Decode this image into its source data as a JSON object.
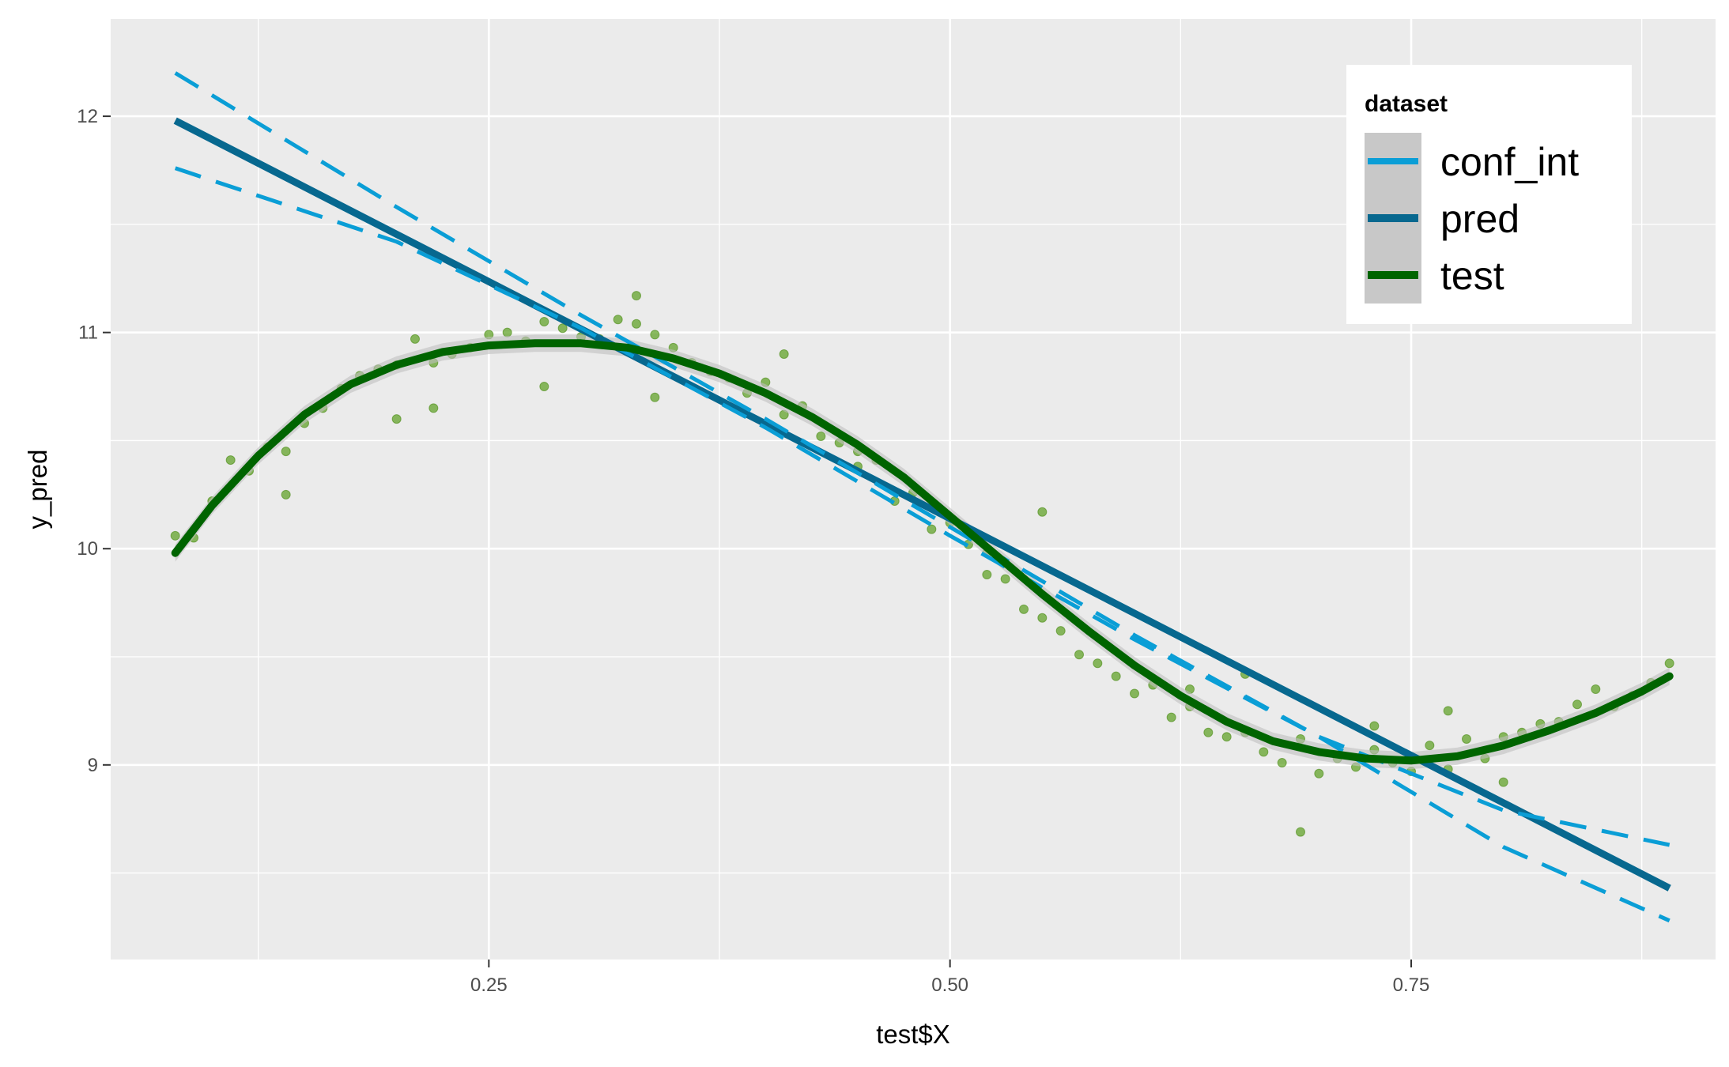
{
  "chart_data": {
    "type": "scatter",
    "xlabel": "test$X",
    "ylabel": "y_pred",
    "xlim": [
      0.045,
      0.915
    ],
    "ylim": [
      8.1,
      12.45
    ],
    "x_ticks": [
      0.25,
      0.5,
      0.75
    ],
    "x_tick_labels": [
      "0.25",
      "0.50",
      "0.75"
    ],
    "x_minor_ticks": [
      0.125,
      0.375,
      0.625,
      0.875
    ],
    "y_ticks": [
      9,
      10,
      11,
      12
    ],
    "y_tick_labels": [
      "9",
      "10",
      "11",
      "12"
    ],
    "y_minor_ticks": [
      8.5,
      9.5,
      10.5,
      11.5
    ],
    "grid": true,
    "legend": {
      "title": "dataset",
      "placement": "top-right",
      "entries": [
        {
          "label": "conf_int",
          "color": "#0a9ed6",
          "style": "dashed"
        },
        {
          "label": "pred",
          "color": "#07688f",
          "style": "solid"
        },
        {
          "label": "test",
          "color": "#006400",
          "style": "solid"
        }
      ]
    },
    "colors": {
      "panel": "#ebebeb",
      "grid": "#ffffff",
      "points": "#5a9e1e",
      "conf_int": "#0a9ed6",
      "pred": "#07688f",
      "test": "#006400",
      "ribbon": "#c0c0c0"
    },
    "series": [
      {
        "name": "pred",
        "kind": "line",
        "x": [
          0.08,
          0.89
        ],
        "y": [
          11.98,
          8.43
        ]
      },
      {
        "name": "conf_int",
        "kind": "dashed-line",
        "x": [
          0.08,
          0.2,
          0.3,
          0.4,
          0.5,
          0.6,
          0.7,
          0.8,
          0.89
        ],
        "y": [
          12.2,
          11.58,
          11.08,
          10.6,
          10.1,
          9.6,
          9.13,
          8.62,
          8.28
        ]
      },
      {
        "name": "conf_int",
        "kind": "dashed-line",
        "x": [
          0.08,
          0.2,
          0.3,
          0.4,
          0.5,
          0.6,
          0.7,
          0.8,
          0.89
        ],
        "y": [
          11.76,
          11.42,
          11.02,
          10.56,
          10.06,
          9.58,
          9.13,
          8.79,
          8.63
        ]
      },
      {
        "name": "test",
        "kind": "smooth",
        "x": [
          0.08,
          0.1,
          0.125,
          0.15,
          0.175,
          0.2,
          0.225,
          0.25,
          0.275,
          0.3,
          0.325,
          0.35,
          0.375,
          0.4,
          0.425,
          0.45,
          0.475,
          0.5,
          0.525,
          0.55,
          0.575,
          0.6,
          0.625,
          0.65,
          0.675,
          0.7,
          0.725,
          0.75,
          0.775,
          0.8,
          0.825,
          0.85,
          0.875,
          0.89
        ],
        "y": [
          9.98,
          10.2,
          10.43,
          10.62,
          10.76,
          10.85,
          10.91,
          10.94,
          10.95,
          10.95,
          10.93,
          10.88,
          10.81,
          10.72,
          10.61,
          10.48,
          10.33,
          10.15,
          9.97,
          9.79,
          9.62,
          9.46,
          9.32,
          9.2,
          9.11,
          9.06,
          9.03,
          9.02,
          9.04,
          9.09,
          9.16,
          9.24,
          9.34,
          9.41
        ]
      },
      {
        "name": "test",
        "kind": "points",
        "x": [
          0.08,
          0.09,
          0.1,
          0.11,
          0.12,
          0.13,
          0.14,
          0.15,
          0.16,
          0.17,
          0.18,
          0.19,
          0.2,
          0.21,
          0.22,
          0.23,
          0.24,
          0.25,
          0.26,
          0.27,
          0.28,
          0.29,
          0.3,
          0.31,
          0.32,
          0.33,
          0.34,
          0.35,
          0.36,
          0.37,
          0.38,
          0.39,
          0.4,
          0.41,
          0.42,
          0.43,
          0.44,
          0.45,
          0.46,
          0.47,
          0.48,
          0.49,
          0.5,
          0.51,
          0.52,
          0.53,
          0.54,
          0.55,
          0.56,
          0.57,
          0.58,
          0.59,
          0.6,
          0.61,
          0.62,
          0.63,
          0.64,
          0.65,
          0.66,
          0.67,
          0.68,
          0.69,
          0.7,
          0.71,
          0.72,
          0.73,
          0.74,
          0.75,
          0.76,
          0.77,
          0.78,
          0.79,
          0.8,
          0.81,
          0.82,
          0.83,
          0.84,
          0.85,
          0.86,
          0.87,
          0.88,
          0.89,
          0.14,
          0.2,
          0.22,
          0.28,
          0.33,
          0.34,
          0.41,
          0.45,
          0.52,
          0.55,
          0.63,
          0.66,
          0.69,
          0.73,
          0.77,
          0.8
        ],
        "y": [
          10.06,
          10.05,
          10.22,
          10.41,
          10.36,
          10.47,
          10.45,
          10.58,
          10.65,
          10.74,
          10.8,
          10.83,
          10.85,
          10.97,
          10.86,
          10.9,
          10.93,
          10.99,
          11.0,
          10.96,
          11.05,
          11.02,
          10.98,
          10.97,
          11.06,
          11.04,
          10.99,
          10.93,
          10.86,
          10.82,
          10.79,
          10.72,
          10.77,
          10.62,
          10.66,
          10.52,
          10.49,
          10.38,
          10.41,
          10.22,
          10.26,
          10.09,
          10.12,
          10.02,
          9.88,
          9.86,
          9.72,
          9.68,
          9.62,
          9.51,
          9.47,
          9.41,
          9.33,
          9.37,
          9.22,
          9.27,
          9.15,
          9.13,
          9.15,
          9.06,
          9.01,
          9.12,
          8.96,
          9.03,
          8.99,
          9.07,
          9.01,
          8.97,
          9.09,
          8.98,
          9.12,
          9.03,
          9.13,
          9.15,
          9.19,
          9.2,
          9.28,
          9.35,
          9.27,
          9.32,
          9.38,
          9.47,
          10.25,
          10.6,
          10.65,
          10.75,
          11.17,
          10.7,
          10.9,
          10.45,
          9.98,
          10.17,
          9.35,
          9.42,
          8.69,
          9.18,
          9.25,
          8.92
        ]
      }
    ]
  }
}
